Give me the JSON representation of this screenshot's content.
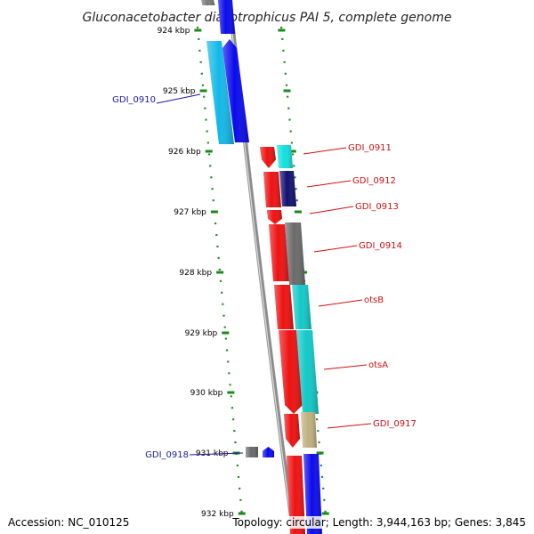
{
  "title": "Gluconacetobacter diazotrophicus PAI 5, complete genome",
  "footer": {
    "accession": "Accession: NC_010125",
    "summary": "Topology: circular; Length: 3,944,163 bp; Genes: 3,845"
  },
  "colors": {
    "backbone": "#8c8c8c",
    "ticks": "#1a8a1a",
    "label_left": "#1a1aa0",
    "label_right": "#d01010",
    "leader_left": "#1a1aa0",
    "leader_right": "#d01010"
  },
  "ticks": [
    "924 kbp",
    "925 kbp",
    "926 kbp",
    "927 kbp",
    "928 kbp",
    "929 kbp",
    "930 kbp",
    "931 kbp",
    "932 kbp"
  ],
  "left_labels": [
    {
      "name": "GDI_0910"
    },
    {
      "name": "GDI_0918"
    }
  ],
  "right_labels": [
    {
      "name": "GDI_0911"
    },
    {
      "name": "GDI_0912"
    },
    {
      "name": "GDI_0913"
    },
    {
      "name": "GDI_0914"
    },
    {
      "name": "otsB"
    },
    {
      "name": "otsA"
    },
    {
      "name": "GDI_0917"
    }
  ],
  "features": [
    {
      "name": "top-gray-feature",
      "color": "#7a7a7a",
      "kind": "gene"
    },
    {
      "name": "top-blue-feature",
      "color": "#0a0aee",
      "kind": "gene"
    },
    {
      "name": "GDI_0910-cds",
      "color": "#12b8e8",
      "kind": "cds"
    },
    {
      "name": "GDI_0910-gene",
      "color": "#0a0aee",
      "kind": "gene"
    },
    {
      "name": "GDI_0911-gene",
      "color": "#ee1111",
      "kind": "gene"
    },
    {
      "name": "GDI_0911-cds",
      "color": "#12e0e0",
      "kind": "cds"
    },
    {
      "name": "GDI_0912-gene",
      "color": "#ee1111",
      "kind": "gene"
    },
    {
      "name": "GDI_0912-cds",
      "color": "#101070",
      "kind": "cds"
    },
    {
      "name": "GDI_0913-gene",
      "color": "#ee1111",
      "kind": "gene"
    },
    {
      "name": "GDI_0914-gene",
      "color": "#ee1111",
      "kind": "gene"
    },
    {
      "name": "GDI_0914-cds",
      "color": "#6a6a6a",
      "kind": "cds"
    },
    {
      "name": "otsB-gene",
      "color": "#ee1111",
      "kind": "gene"
    },
    {
      "name": "otsB-cds",
      "color": "#12c8c8",
      "kind": "cds"
    },
    {
      "name": "otsA-gene",
      "color": "#ee1111",
      "kind": "gene"
    },
    {
      "name": "otsA-cds",
      "color": "#12c8c8",
      "kind": "cds"
    },
    {
      "name": "GDI_0917-gene",
      "color": "#ee1111",
      "kind": "gene"
    },
    {
      "name": "GDI_0917-cds",
      "color": "#bfb080",
      "kind": "cds"
    },
    {
      "name": "GDI_0918-gene",
      "color": "#6a6a6a",
      "kind": "gene"
    },
    {
      "name": "GDI_0918-cds",
      "color": "#0a0aee",
      "kind": "cds"
    },
    {
      "name": "bottom-red-feature",
      "color": "#ee1111",
      "kind": "gene"
    },
    {
      "name": "bottom-blue-feature",
      "color": "#0a0aee",
      "kind": "cds"
    }
  ]
}
